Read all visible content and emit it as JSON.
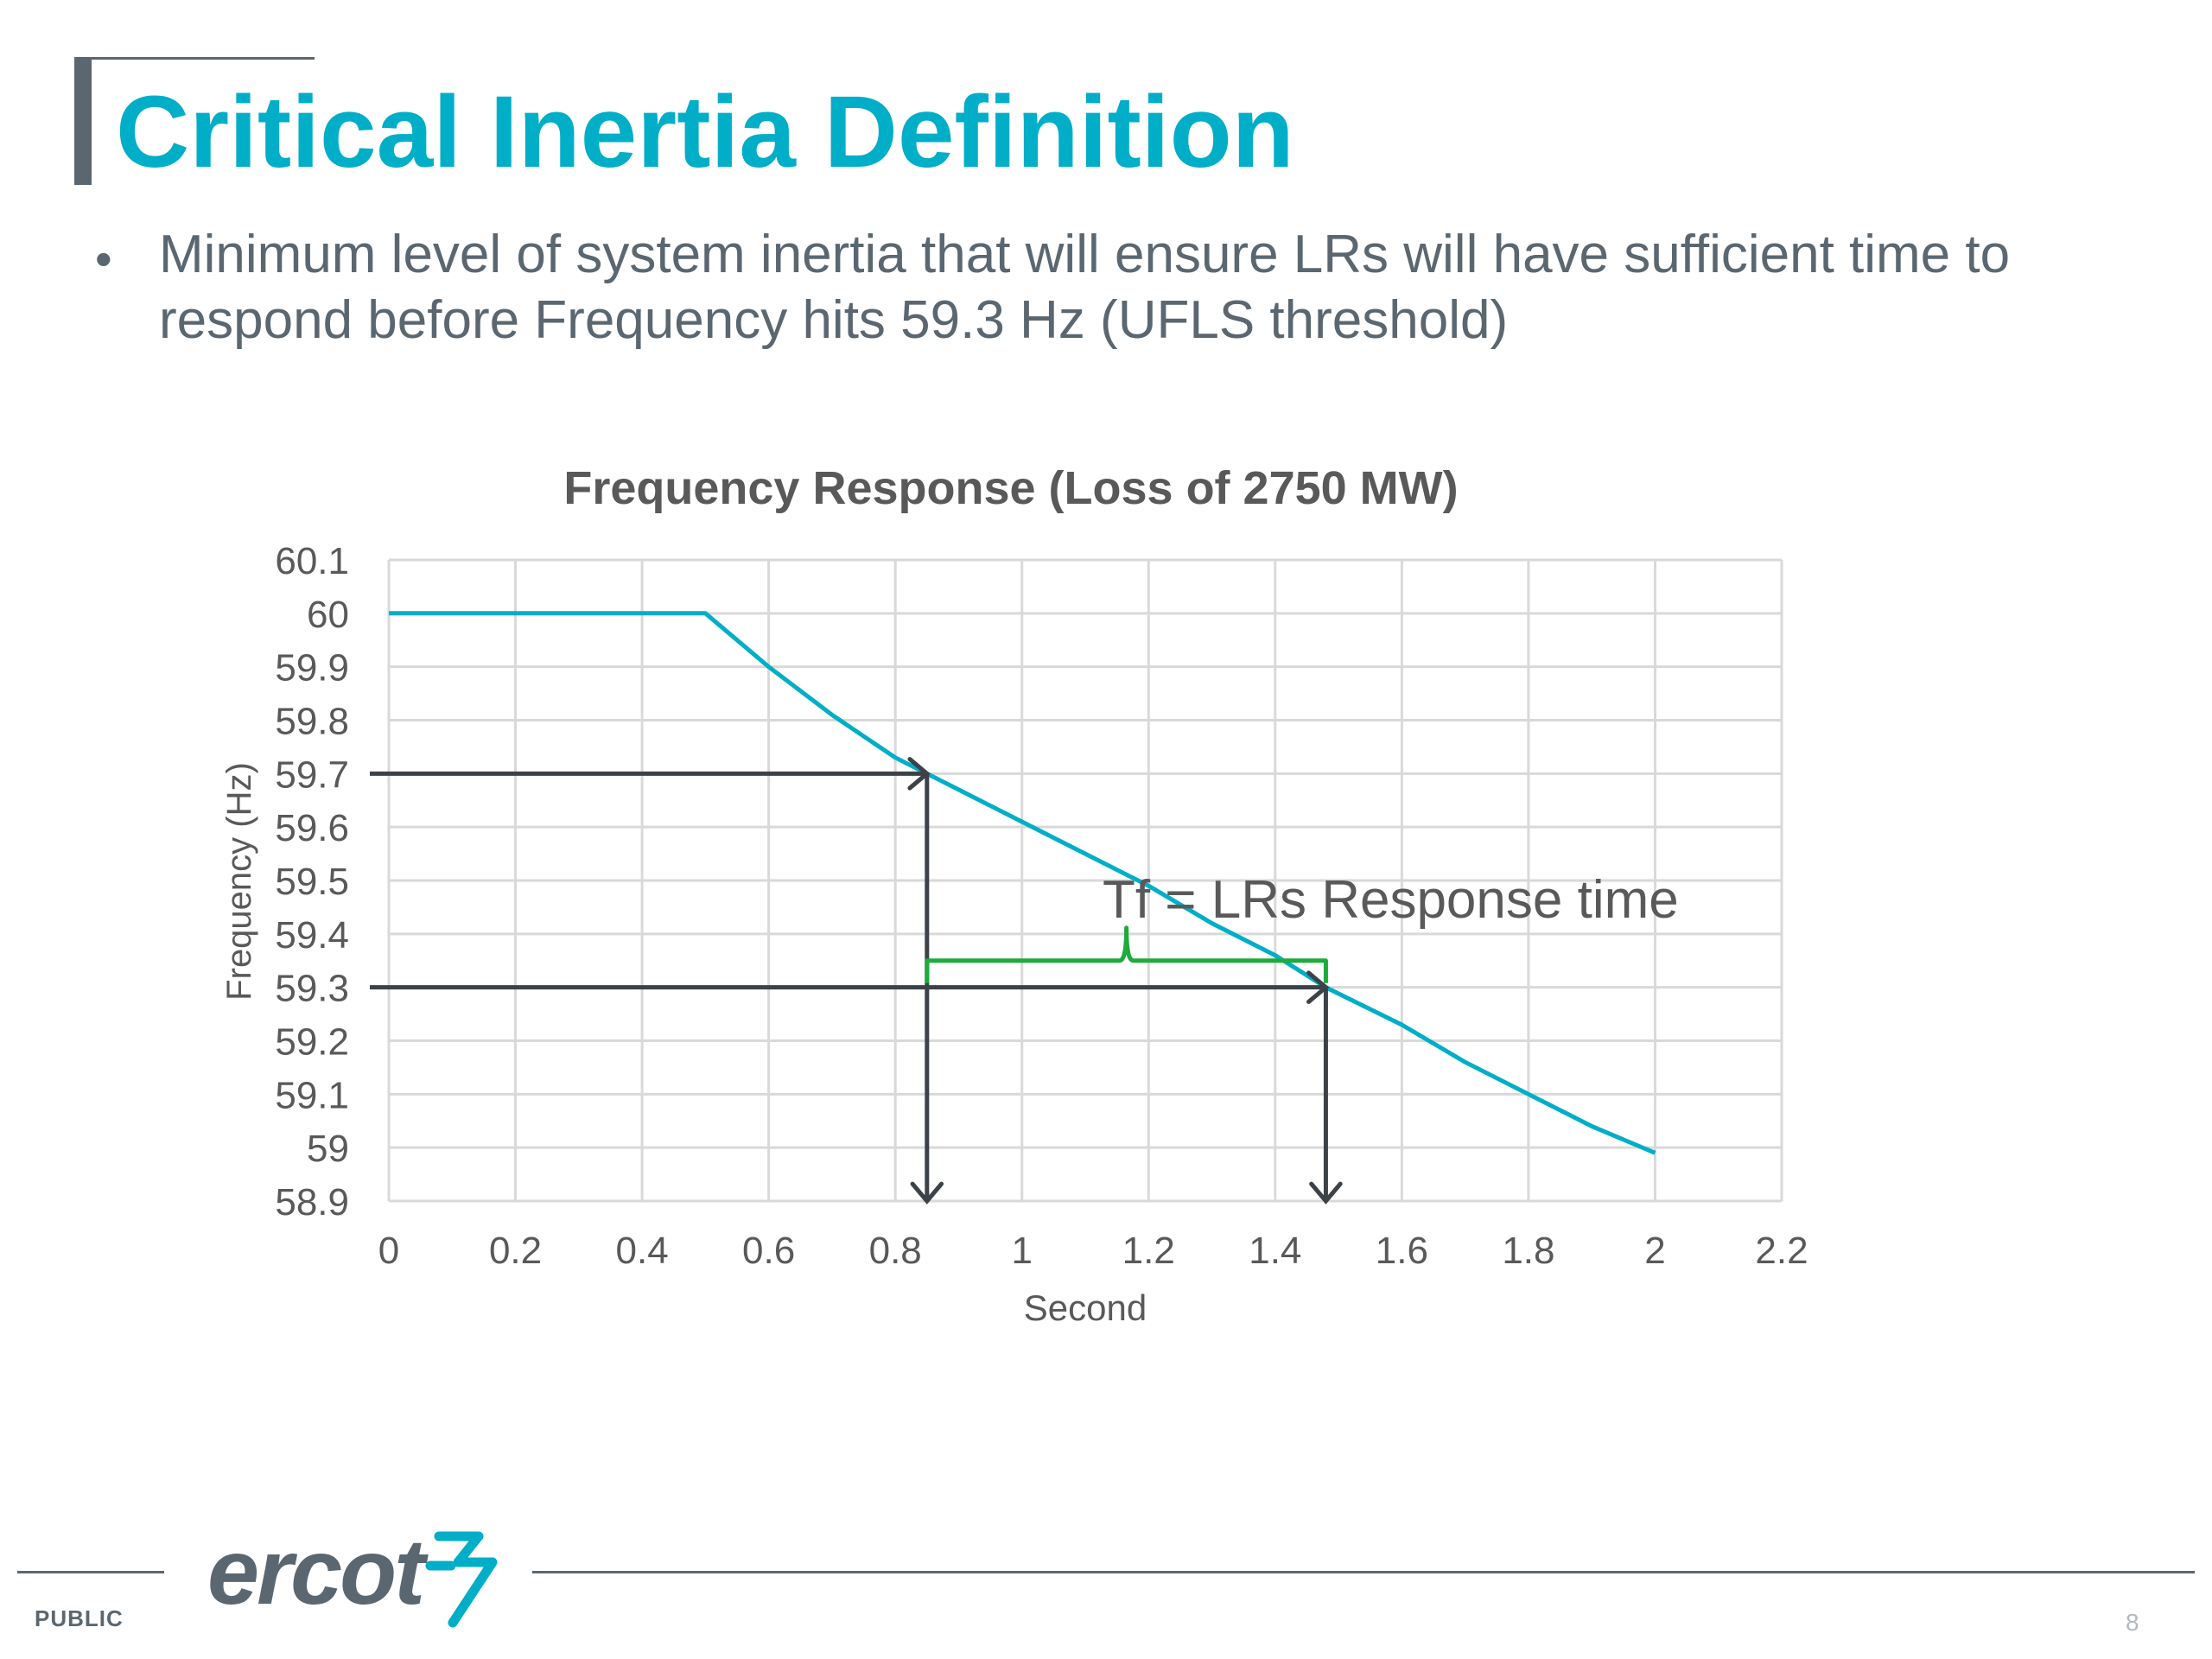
{
  "slide": {
    "title": "Critical Inertia Definition",
    "bullet": "Minimum level of system inertia that will ensure LRs will have sufficient time to respond before Frequency hits 59.3 Hz (UFLS threshold)",
    "footer_label": "PUBLIC",
    "page_number": "8",
    "logo_text": "ercot"
  },
  "colors": {
    "title": "#00aec7",
    "text": "#5b6770",
    "series": "#00aec7",
    "brace": "#1dab3b",
    "arrows": "#3c4247",
    "grid": "#d9d9d9"
  },
  "chart_data": {
    "type": "line",
    "title": "Frequency Response (Loss of 2750 MW)",
    "xlabel": "Second",
    "ylabel": "Frequency (Hz)",
    "xlim": [
      0,
      2.2
    ],
    "ylim": [
      58.9,
      60.1
    ],
    "x_ticks": [
      "0",
      "0.2",
      "0.4",
      "0.6",
      "0.8",
      "1",
      "1.2",
      "1.4",
      "1.6",
      "1.8",
      "2",
      "2.2"
    ],
    "y_ticks": [
      "60.1",
      "60",
      "59.9",
      "59.8",
      "59.7",
      "59.6",
      "59.5",
      "59.4",
      "59.3",
      "59.2",
      "59.1",
      "59",
      "58.9"
    ],
    "grid": true,
    "legend": "none",
    "series": [
      {
        "x": [
          0,
          0.5,
          0.6,
          0.7,
          0.8,
          0.85,
          0.9,
          1.0,
          1.1,
          1.2,
          1.3,
          1.4,
          1.48,
          1.6,
          1.7,
          1.8,
          1.9,
          2.0
        ],
        "y": [
          60.0,
          60.0,
          59.9,
          59.81,
          59.73,
          59.7,
          59.67,
          59.61,
          59.55,
          59.49,
          59.42,
          59.36,
          59.3,
          59.23,
          59.16,
          59.1,
          59.04,
          58.99
        ]
      }
    ],
    "reference_arrows": [
      {
        "from": [
          -0.03,
          59.7
        ],
        "to": [
          0.85,
          59.7
        ]
      },
      {
        "from": [
          0.85,
          59.7
        ],
        "to": [
          0.85,
          58.9
        ]
      },
      {
        "from": [
          -0.03,
          59.3
        ],
        "to": [
          1.48,
          59.3
        ]
      },
      {
        "from": [
          1.48,
          59.3
        ],
        "to": [
          1.48,
          58.9
        ]
      }
    ],
    "brace": {
      "x_start": 0.85,
      "x_end": 1.48,
      "y": 59.35
    },
    "annotation": "Tf = LRs Response time",
    "annotation_at": [
      1.16,
      59.44
    ]
  }
}
